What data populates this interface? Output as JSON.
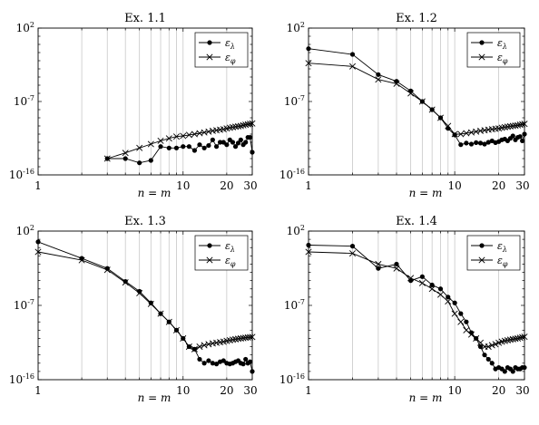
{
  "chart_data": [
    {
      "type": "line",
      "title": "Ex. 1.1",
      "xlabel": "n = m",
      "ylabel": "",
      "xscale": "log",
      "yscale": "log",
      "xlim": [
        1,
        30
      ],
      "ylim": [
        1e-16,
        100
      ],
      "x_ticks": [
        "1",
        "10",
        "20",
        "30"
      ],
      "y_ticks": [
        "10^2",
        "10^-7",
        "10^-16"
      ],
      "grid": "vertical",
      "legend": "top-right",
      "series": [
        {
          "name": "ε_λ",
          "marker": "circle",
          "x": [
            3,
            4,
            5,
            6,
            7,
            8,
            9,
            10,
            11,
            12,
            13,
            14,
            15,
            16,
            17,
            18,
            19,
            20,
            21,
            22,
            23,
            24,
            25,
            26,
            27,
            28,
            29,
            30
          ],
          "y": [
            1e-14,
            1e-14,
            3e-15,
            6e-15,
            3e-13,
            2e-13,
            2e-13,
            3e-13,
            3e-13,
            1e-13,
            5e-13,
            2e-13,
            4e-13,
            2e-12,
            3e-13,
            1e-12,
            1e-12,
            5e-13,
            2e-12,
            1e-12,
            3e-13,
            8e-13,
            2e-12,
            5e-13,
            1e-12,
            4e-12,
            4e-12,
            6e-14
          ]
        },
        {
          "name": "ε_φ",
          "marker": "cross",
          "x": [
            3,
            4,
            5,
            6,
            7,
            8,
            9,
            10,
            11,
            12,
            13,
            14,
            15,
            16,
            17,
            18,
            19,
            20,
            21,
            22,
            23,
            24,
            25,
            26,
            27,
            28,
            29,
            30
          ],
          "y": [
            1e-14,
            5e-14,
            2e-13,
            6e-13,
            1.5e-12,
            3e-12,
            5e-12,
            6e-12,
            8e-12,
            1e-11,
            1.3e-11,
            1.6e-11,
            2e-11,
            2.5e-11,
            3e-11,
            3.5e-11,
            4e-11,
            5e-11,
            6e-11,
            7e-11,
            8e-11,
            9e-11,
            1e-10,
            1.2e-10,
            1.4e-10,
            1.6e-10,
            1.8e-10,
            2e-10
          ]
        }
      ]
    },
    {
      "type": "line",
      "title": "Ex. 1.2",
      "xlabel": "n = m",
      "ylabel": "",
      "xscale": "log",
      "yscale": "log",
      "xlim": [
        1,
        30
      ],
      "ylim": [
        1e-16,
        100
      ],
      "x_ticks": [
        "1",
        "10",
        "20",
        "30"
      ],
      "y_ticks": [
        "10^2",
        "10^-7",
        "10^-16"
      ],
      "grid": "vertical",
      "legend": "top-right",
      "series": [
        {
          "name": "ε_λ",
          "marker": "circle",
          "x": [
            1,
            2,
            3,
            4,
            5,
            6,
            7,
            8,
            9,
            10,
            11,
            12,
            13,
            14,
            15,
            16,
            17,
            18,
            19,
            20,
            21,
            22,
            23,
            24,
            25,
            26,
            27,
            28,
            29,
            30
          ],
          "y": [
            0.3,
            0.06,
            0.0002,
            3e-05,
            2e-06,
            1e-07,
            1e-08,
            1e-09,
            5e-11,
            8e-12,
            5e-13,
            8e-13,
            6e-13,
            9e-13,
            8e-13,
            6e-13,
            1e-12,
            1.5e-12,
            9e-13,
            1.2e-12,
            2e-12,
            2.5e-12,
            1.5e-12,
            3e-12,
            6e-12,
            2e-12,
            4e-12,
            5e-12,
            1.5e-12,
            1e-11
          ]
        },
        {
          "name": "ε_φ",
          "marker": "cross",
          "x": [
            1,
            2,
            3,
            4,
            5,
            6,
            7,
            8,
            9,
            10,
            11,
            12,
            13,
            14,
            15,
            16,
            17,
            18,
            19,
            20,
            21,
            22,
            23,
            24,
            25,
            26,
            27,
            28,
            29,
            30
          ],
          "y": [
            0.005,
            0.002,
            5e-05,
            1.5e-05,
            1e-06,
            1e-07,
            1e-08,
            1e-09,
            1e-10,
            1e-11,
            1e-11,
            1.3e-11,
            1.6e-11,
            2e-11,
            2.5e-11,
            3e-11,
            3.5e-11,
            4e-11,
            4.5e-11,
            5e-11,
            6e-11,
            7e-11,
            8e-11,
            9e-11,
            1e-10,
            1.1e-10,
            1.2e-10,
            1.4e-10,
            1.6e-10,
            1.8e-10
          ]
        }
      ]
    },
    {
      "type": "line",
      "title": "Ex. 1.3",
      "xlabel": "n = m",
      "ylabel": "",
      "xscale": "log",
      "yscale": "log",
      "xlim": [
        1,
        30
      ],
      "ylim": [
        1e-16,
        100
      ],
      "x_ticks": [
        "1",
        "10",
        "20",
        "30"
      ],
      "y_ticks": [
        "10^2",
        "10^-7",
        "10^-16"
      ],
      "grid": "vertical",
      "legend": "top-right",
      "series": [
        {
          "name": "ε_λ",
          "marker": "circle",
          "x": [
            1,
            2,
            3,
            4,
            5,
            6,
            7,
            8,
            9,
            10,
            11,
            12,
            13,
            14,
            15,
            16,
            17,
            18,
            19,
            20,
            21,
            22,
            23,
            24,
            25,
            26,
            27,
            28,
            29,
            30
          ],
          "y": [
            5,
            0.05,
            0.003,
            8e-05,
            5e-06,
            2e-07,
            1e-08,
            1e-09,
            1e-10,
            1e-11,
            1e-12,
            5e-13,
            3e-14,
            1e-14,
            2e-14,
            1e-14,
            8e-15,
            1.5e-14,
            2e-14,
            1e-14,
            8e-15,
            1e-14,
            1.5e-14,
            2e-14,
            1e-14,
            8e-15,
            3e-14,
            1e-14,
            1.5e-14,
            1e-15
          ]
        },
        {
          "name": "ε_φ",
          "marker": "cross",
          "x": [
            1,
            2,
            3,
            4,
            5,
            6,
            7,
            8,
            9,
            10,
            11,
            12,
            13,
            14,
            15,
            16,
            17,
            18,
            19,
            20,
            21,
            22,
            23,
            24,
            25,
            26,
            27,
            28,
            29,
            30
          ],
          "y": [
            0.3,
            0.03,
            0.002,
            6e-05,
            3e-06,
            1.5e-07,
            1e-08,
            1e-09,
            1e-10,
            1e-11,
            1e-12,
            5e-13,
            1e-12,
            1.5e-12,
            2e-12,
            2.5e-12,
            3e-12,
            3.5e-12,
            4e-12,
            5e-12,
            6e-12,
            7e-12,
            8e-12,
            9e-12,
            1e-11,
            1.1e-11,
            1.2e-11,
            1.3e-11,
            1.4e-11,
            1.5e-11
          ]
        }
      ]
    },
    {
      "type": "line",
      "title": "Ex. 1.4",
      "xlabel": "n = m",
      "ylabel": "",
      "xscale": "log",
      "yscale": "log",
      "xlim": [
        1,
        30
      ],
      "ylim": [
        1e-16,
        100
      ],
      "x_ticks": [
        "1",
        "10",
        "20",
        "30"
      ],
      "y_ticks": [
        "10^2",
        "10^-7",
        "10^-16"
      ],
      "grid": "vertical",
      "legend": "top-right",
      "series": [
        {
          "name": "ε_λ",
          "marker": "circle",
          "x": [
            1,
            2,
            3,
            4,
            5,
            6,
            7,
            8,
            9,
            10,
            11,
            12,
            13,
            14,
            15,
            16,
            17,
            18,
            19,
            20,
            21,
            22,
            23,
            24,
            25,
            26,
            27,
            28,
            29,
            30
          ],
          "y": [
            2,
            1.5,
            0.003,
            0.01,
            0.0001,
            0.0003,
            3e-05,
            1e-05,
            1e-06,
            2e-07,
            1e-08,
            1e-09,
            5e-11,
            1e-11,
            1e-12,
            1e-13,
            3e-14,
            1e-14,
            2e-15,
            3e-15,
            2e-15,
            1e-15,
            3e-15,
            2e-15,
            1e-15,
            3e-15,
            2e-15,
            2e-15,
            3e-15,
            3e-15
          ]
        },
        {
          "name": "ε_φ",
          "marker": "cross",
          "x": [
            1,
            2,
            3,
            4,
            5,
            6,
            7,
            8,
            9,
            10,
            11,
            12,
            13,
            14,
            15,
            16,
            17,
            18,
            19,
            20,
            21,
            22,
            23,
            24,
            25,
            26,
            27,
            28,
            29,
            30
          ],
          "y": [
            0.3,
            0.2,
            0.01,
            0.003,
            0.0002,
            5e-05,
            1e-05,
            2e-06,
            3e-07,
            1e-08,
            1e-09,
            1e-10,
            3e-11,
            1e-11,
            3e-12,
            1e-12,
            1e-12,
            1.5e-12,
            2e-12,
            3e-12,
            4e-12,
            5e-12,
            6e-12,
            7e-12,
            8e-12,
            9e-12,
            1e-11,
            1.2e-11,
            1.4e-11,
            1.6e-11
          ]
        }
      ]
    }
  ]
}
